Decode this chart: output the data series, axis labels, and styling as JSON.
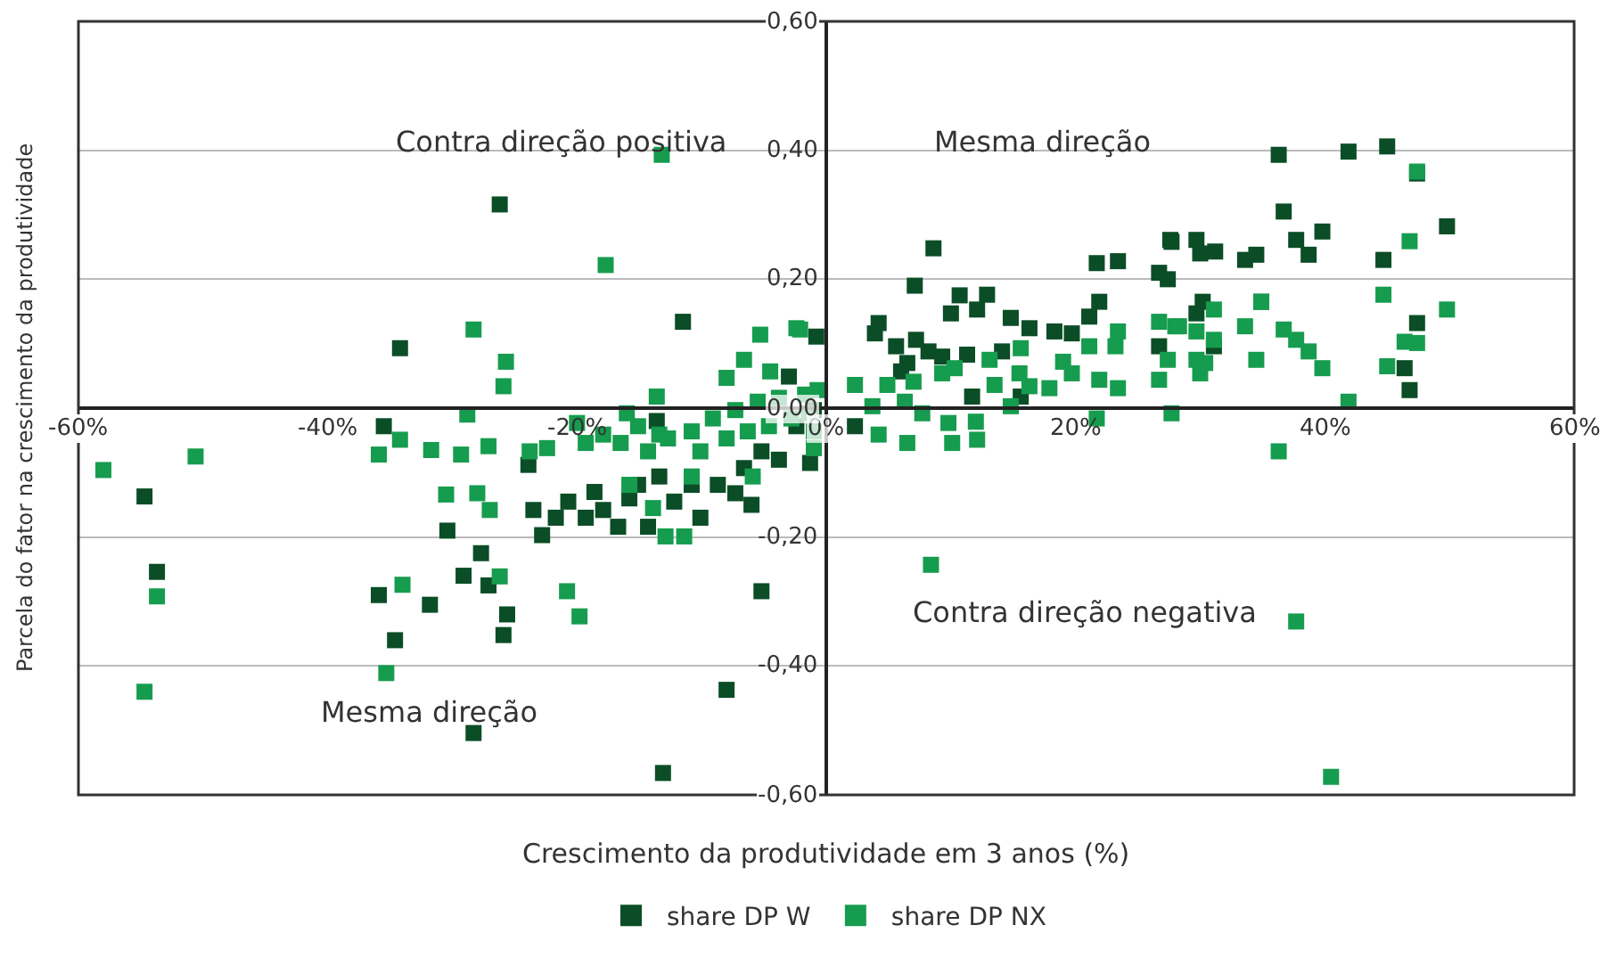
{
  "chart_data": {
    "type": "scatter",
    "xlabel": "Crescimento da produtividade em 3 anos (%)",
    "ylabel": "Parcela do fator na crescimento da produtividade",
    "annotations": [
      "Contra direção positiva",
      "Mesma direção",
      "Mesma direção",
      "Contra direção negativa"
    ],
    "xlim": [
      -60,
      60
    ],
    "ylim": [
      -0.6,
      0.6
    ],
    "xticks": [
      {
        "value": -60,
        "label": "-60%"
      },
      {
        "value": -40,
        "label": "-40%"
      },
      {
        "value": -20,
        "label": "-20%"
      },
      {
        "value": 0,
        "label": "0%"
      },
      {
        "value": 20,
        "label": "20%"
      },
      {
        "value": 40,
        "label": "40%"
      },
      {
        "value": 60,
        "label": "60%"
      }
    ],
    "yticks": [
      {
        "value": -0.6,
        "label": "-0,60"
      },
      {
        "value": -0.4,
        "label": "-0,40"
      },
      {
        "value": -0.2,
        "label": "-0,20"
      },
      {
        "value": 0,
        "label": "0,00"
      },
      {
        "value": 0.2,
        "label": "0,20"
      },
      {
        "value": 0.4,
        "label": "0,40"
      },
      {
        "value": 0.6,
        "label": "0,60"
      }
    ],
    "grid": "y",
    "legend": "bottom",
    "marker": "square",
    "series": [
      {
        "name": "share DP W",
        "color": "#0b4d26",
        "x": [
          -26.2,
          -34.2,
          -11.5,
          -54.7,
          -53.7,
          -35.5,
          -35.9,
          -34.6,
          -31.8,
          -30.4,
          -29.1,
          -27.7,
          -27.1,
          -25.6,
          -25.9,
          -28.3,
          -13.1,
          -8.0,
          -5.2,
          -6.0,
          -23.5,
          -21.7,
          -20.7,
          -19.3,
          -18.6,
          -17.9,
          -16.7,
          -15.8,
          -15.1,
          -14.3,
          -13.4,
          -12.2,
          -10.8,
          -10.1,
          -8.7,
          -7.3,
          -6.6,
          -5.2,
          -3.8,
          -2.4,
          -1.0,
          -3.0,
          -0.8,
          -13.6,
          -22.8,
          -23.9,
          8.6,
          7.1,
          10.7,
          12.9,
          10.0,
          12.1,
          14.8,
          16.3,
          18.3,
          19.7,
          21.1,
          21.9,
          21.7,
          23.4,
          4.2,
          3.9,
          5.6,
          7.2,
          8.2,
          6.5,
          6.0,
          9.3,
          11.3,
          14.1,
          15.6,
          11.7,
          2.3,
          -1.3,
          36.3,
          41.9,
          45.0,
          47.4,
          36.7,
          49.8,
          39.8,
          37.7,
          27.7,
          29.7,
          30.0,
          31.2,
          33.6,
          34.5,
          38.7,
          44.7,
          26.7,
          27.4,
          30.2,
          29.7,
          34.9,
          47.4,
          26.7,
          31.1,
          46.4,
          46.8,
          27.6
        ],
        "values": [
          0.316,
          0.093,
          0.134,
          -0.137,
          -0.254,
          -0.028,
          -0.29,
          -0.36,
          -0.305,
          -0.19,
          -0.26,
          -0.225,
          -0.275,
          -0.32,
          -0.352,
          -0.504,
          -0.566,
          -0.437,
          -0.284,
          -0.15,
          -0.158,
          -0.17,
          -0.145,
          -0.17,
          -0.13,
          -0.158,
          -0.184,
          -0.14,
          -0.119,
          -0.184,
          -0.106,
          -0.145,
          -0.119,
          -0.17,
          -0.119,
          -0.132,
          -0.093,
          -0.067,
          -0.08,
          -0.028,
          -0.003,
          0.049,
          0.111,
          -0.02,
          -0.197,
          -0.088,
          0.248,
          0.19,
          0.175,
          0.176,
          0.147,
          0.153,
          0.14,
          0.124,
          0.119,
          0.116,
          0.142,
          0.165,
          0.225,
          0.228,
          0.132,
          0.116,
          0.096,
          0.106,
          0.088,
          0.07,
          0.057,
          0.08,
          0.083,
          0.088,
          0.018,
          0.018,
          -0.028,
          -0.085,
          0.393,
          0.398,
          0.406,
          0.364,
          0.305,
          0.282,
          0.274,
          0.261,
          0.258,
          0.261,
          0.24,
          0.243,
          0.23,
          0.238,
          0.238,
          0.23,
          0.21,
          0.2,
          0.165,
          0.147,
          0.165,
          0.132,
          0.096,
          0.096,
          0.062,
          0.028,
          0.261
        ]
      },
      {
        "name": "share DP NX",
        "color": "#169c4e",
        "x": [
          -13.2,
          -17.7,
          -28.3,
          -25.7,
          -25.9,
          -28.8,
          -58.0,
          -50.6,
          -53.7,
          -54.7,
          -35.9,
          -34.2,
          -31.7,
          -29.3,
          -27.1,
          -30.5,
          -28.0,
          -27.0,
          -34.0,
          -35.3,
          -26.2,
          -20.8,
          -19.8,
          -23.8,
          -22.4,
          -20.0,
          -16.0,
          -13.6,
          -8.0,
          -6.6,
          -2.4,
          -5.3,
          -12.9,
          -11.4,
          -13.9,
          -13.4,
          -19.3,
          -17.9,
          -16.5,
          -15.1,
          -14.3,
          -12.7,
          -10.8,
          -10.1,
          -9.1,
          -8.0,
          -7.3,
          -6.3,
          -5.5,
          -4.6,
          -3.8,
          -2.8,
          -1.7,
          -1.0,
          -5.9,
          -10.8,
          -15.8,
          -4.5,
          2.3,
          3.7,
          4.9,
          6.3,
          7.0,
          7.7,
          9.3,
          10.3,
          9.8,
          12.0,
          4.2,
          6.5,
          10.1,
          12.1,
          13.1,
          13.5,
          14.8,
          15.5,
          15.6,
          16.3,
          17.9,
          19.0,
          19.7,
          21.1,
          21.9,
          23.4,
          23.2,
          23.4,
          21.7,
          26.7,
          28.0,
          27.4,
          26.7,
          27.7,
          -0.7,
          -1.4,
          -1.0,
          -2.1,
          47.4,
          46.8,
          44.7,
          49.8,
          28.3,
          29.7,
          31.1,
          31.1,
          34.9,
          33.6,
          36.7,
          37.7,
          38.7,
          39.8,
          46.4,
          47.4,
          45.0,
          34.5,
          29.7,
          30.4,
          30.0,
          41.9,
          36.3,
          8.4,
          37.7,
          40.5
        ],
        "values": [
          0.393,
          0.222,
          0.122,
          0.072,
          0.034,
          -0.01,
          -0.096,
          -0.075,
          -0.292,
          -0.44,
          -0.072,
          -0.049,
          -0.065,
          -0.072,
          -0.059,
          -0.134,
          -0.132,
          -0.158,
          -0.274,
          -0.411,
          -0.261,
          -0.284,
          -0.323,
          -0.067,
          -0.062,
          -0.023,
          -0.008,
          0.018,
          0.047,
          0.075,
          0.124,
          0.114,
          -0.199,
          -0.199,
          -0.155,
          -0.041,
          -0.054,
          -0.041,
          -0.054,
          -0.028,
          -0.067,
          -0.047,
          -0.036,
          -0.067,
          -0.016,
          -0.047,
          -0.003,
          -0.036,
          0.01,
          -0.028,
          0.016,
          -0.016,
          0.021,
          -0.036,
          -0.106,
          -0.106,
          -0.119,
          0.057,
          0.036,
          0.003,
          0.036,
          0.01,
          0.041,
          -0.008,
          0.054,
          0.062,
          -0.023,
          -0.021,
          -0.041,
          -0.054,
          -0.054,
          -0.049,
          0.075,
          0.036,
          0.003,
          0.054,
          0.093,
          0.034,
          0.031,
          0.072,
          0.054,
          0.096,
          0.044,
          0.119,
          0.096,
          0.031,
          -0.016,
          0.134,
          0.127,
          0.075,
          0.044,
          -0.008,
          0.028,
          -0.008,
          -0.062,
          0.122,
          0.367,
          0.259,
          0.176,
          0.153,
          0.127,
          0.119,
          0.153,
          0.106,
          0.165,
          0.127,
          0.122,
          0.106,
          0.088,
          0.062,
          0.103,
          0.101,
          0.065,
          0.075,
          0.075,
          0.07,
          0.054,
          0.01,
          -0.067,
          -0.243,
          -0.331,
          -0.572
        ]
      }
    ]
  }
}
